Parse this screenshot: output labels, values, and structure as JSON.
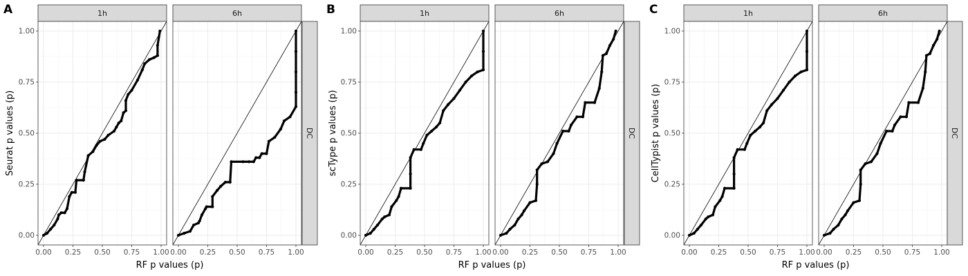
{
  "chart_data": [
    {
      "type": "scatter",
      "panel_label": "A",
      "facets": [
        "1h",
        "6h"
      ],
      "row_strip": "DC",
      "xlabel": "RF p values (p)",
      "ylabel": "Seurat p values (p)",
      "xlim": [
        0,
        1
      ],
      "ylim": [
        0,
        1
      ],
      "xticks": [
        "0.00",
        "0.25",
        "0.50",
        "0.75",
        "1.00"
      ],
      "yticks": [
        "0.00",
        "0.25",
        "0.50",
        "0.75",
        "1.00"
      ],
      "grid": true,
      "reference_line": "y = x",
      "series": [
        {
          "facet": "1h",
          "points": [
            [
              0,
              0
            ],
            [
              0.03,
              0.01
            ],
            [
              0.06,
              0.03
            ],
            [
              0.09,
              0.05
            ],
            [
              0.12,
              0.08
            ],
            [
              0.13,
              0.1
            ],
            [
              0.15,
              0.11
            ],
            [
              0.18,
              0.11
            ],
            [
              0.2,
              0.13
            ],
            [
              0.22,
              0.19
            ],
            [
              0.24,
              0.21
            ],
            [
              0.27,
              0.21
            ],
            [
              0.28,
              0.27
            ],
            [
              0.34,
              0.27
            ],
            [
              0.35,
              0.31
            ],
            [
              0.38,
              0.39
            ],
            [
              0.42,
              0.41
            ],
            [
              0.45,
              0.44
            ],
            [
              0.48,
              0.46
            ],
            [
              0.52,
              0.47
            ],
            [
              0.55,
              0.49
            ],
            [
              0.6,
              0.51
            ],
            [
              0.62,
              0.53
            ],
            [
              0.64,
              0.55
            ],
            [
              0.66,
              0.56
            ],
            [
              0.68,
              0.6
            ],
            [
              0.7,
              0.61
            ],
            [
              0.7,
              0.66
            ],
            [
              0.72,
              0.69
            ],
            [
              0.75,
              0.71
            ],
            [
              0.8,
              0.76
            ],
            [
              0.84,
              0.81
            ],
            [
              0.86,
              0.84
            ],
            [
              0.9,
              0.86
            ],
            [
              0.94,
              0.87
            ],
            [
              0.97,
              0.88
            ],
            [
              0.97,
              0.93
            ],
            [
              0.99,
              1.0
            ]
          ]
        },
        {
          "facet": "6h",
          "points": [
            [
              0,
              0
            ],
            [
              0.05,
              0.01
            ],
            [
              0.1,
              0.02
            ],
            [
              0.13,
              0.05
            ],
            [
              0.17,
              0.06
            ],
            [
              0.18,
              0.07
            ],
            [
              0.2,
              0.1
            ],
            [
              0.23,
              0.13
            ],
            [
              0.24,
              0.14
            ],
            [
              0.29,
              0.14
            ],
            [
              0.29,
              0.19
            ],
            [
              0.33,
              0.22
            ],
            [
              0.36,
              0.24
            ],
            [
              0.4,
              0.26
            ],
            [
              0.44,
              0.26
            ],
            [
              0.45,
              0.36
            ],
            [
              0.55,
              0.36
            ],
            [
              0.6,
              0.36
            ],
            [
              0.64,
              0.36
            ],
            [
              0.66,
              0.38
            ],
            [
              0.69,
              0.38
            ],
            [
              0.71,
              0.4
            ],
            [
              0.75,
              0.4
            ],
            [
              0.77,
              0.46
            ],
            [
              0.82,
              0.48
            ],
            [
              0.87,
              0.52
            ],
            [
              0.9,
              0.56
            ],
            [
              0.95,
              0.58
            ],
            [
              1.0,
              0.63
            ],
            [
              1.0,
              0.7
            ],
            [
              1.0,
              0.8
            ],
            [
              1.0,
              0.9
            ],
            [
              1.0,
              1.0
            ]
          ]
        }
      ]
    },
    {
      "type": "scatter",
      "panel_label": "B",
      "facets": [
        "1h",
        "6h"
      ],
      "row_strip": "DC",
      "xlabel": "RF p values (p)",
      "ylabel": "scType p values (p)",
      "xlim": [
        0,
        1
      ],
      "ylim": [
        0,
        1
      ],
      "xticks": [
        "0.00",
        "0.25",
        "0.50",
        "0.75",
        "1.00"
      ],
      "yticks": [
        "0.00",
        "0.25",
        "0.50",
        "0.75",
        "1.00"
      ],
      "grid": true,
      "reference_line": "y = x",
      "series": [
        {
          "facet": "1h",
          "points": [
            [
              0,
              0
            ],
            [
              0.04,
              0.01
            ],
            [
              0.07,
              0.03
            ],
            [
              0.1,
              0.05
            ],
            [
              0.14,
              0.08
            ],
            [
              0.16,
              0.09
            ],
            [
              0.2,
              0.1
            ],
            [
              0.22,
              0.14
            ],
            [
              0.26,
              0.17
            ],
            [
              0.28,
              0.19
            ],
            [
              0.3,
              0.23
            ],
            [
              0.38,
              0.23
            ],
            [
              0.38,
              0.3
            ],
            [
              0.38,
              0.38
            ],
            [
              0.41,
              0.42
            ],
            [
              0.47,
              0.42
            ],
            [
              0.49,
              0.45
            ],
            [
              0.52,
              0.49
            ],
            [
              0.56,
              0.51
            ],
            [
              0.6,
              0.53
            ],
            [
              0.63,
              0.55
            ],
            [
              0.66,
              0.61
            ],
            [
              0.7,
              0.64
            ],
            [
              0.75,
              0.67
            ],
            [
              0.8,
              0.71
            ],
            [
              0.85,
              0.75
            ],
            [
              0.9,
              0.78
            ],
            [
              0.95,
              0.8
            ],
            [
              1.0,
              0.81
            ],
            [
              1.0,
              0.9
            ],
            [
              1.0,
              1.0
            ]
          ]
        },
        {
          "facet": "6h",
          "points": [
            [
              0,
              0
            ],
            [
              0.05,
              0.01
            ],
            [
              0.08,
              0.03
            ],
            [
              0.12,
              0.05
            ],
            [
              0.15,
              0.08
            ],
            [
              0.18,
              0.1
            ],
            [
              0.2,
              0.12
            ],
            [
              0.25,
              0.16
            ],
            [
              0.3,
              0.17
            ],
            [
              0.31,
              0.25
            ],
            [
              0.31,
              0.32
            ],
            [
              0.35,
              0.35
            ],
            [
              0.4,
              0.36
            ],
            [
              0.45,
              0.4
            ],
            [
              0.48,
              0.45
            ],
            [
              0.53,
              0.51
            ],
            [
              0.58,
              0.51
            ],
            [
              0.6,
              0.54
            ],
            [
              0.65,
              0.58
            ],
            [
              0.7,
              0.58
            ],
            [
              0.72,
              0.65
            ],
            [
              0.8,
              0.65
            ],
            [
              0.84,
              0.72
            ],
            [
              0.86,
              0.8
            ],
            [
              0.87,
              0.88
            ],
            [
              0.9,
              0.89
            ],
            [
              0.93,
              0.93
            ],
            [
              0.96,
              0.96
            ],
            [
              0.98,
              1.0
            ]
          ]
        }
      ]
    },
    {
      "type": "scatter",
      "panel_label": "C",
      "facets": [
        "1h",
        "6h"
      ],
      "row_strip": "DC",
      "xlabel": "RF p values (p)",
      "ylabel": "CellTypist p values (p)",
      "xlim": [
        0,
        1
      ],
      "ylim": [
        0,
        1
      ],
      "xticks": [
        "0.00",
        "0.25",
        "0.50",
        "0.75",
        "1.00"
      ],
      "yticks": [
        "0.00",
        "0.25",
        "0.50",
        "0.75",
        "1.00"
      ],
      "grid": true,
      "reference_line": "y = x",
      "series": [
        {
          "facet": "1h",
          "points": [
            [
              0,
              0
            ],
            [
              0.04,
              0.01
            ],
            [
              0.07,
              0.03
            ],
            [
              0.1,
              0.05
            ],
            [
              0.14,
              0.08
            ],
            [
              0.16,
              0.09
            ],
            [
              0.2,
              0.1
            ],
            [
              0.22,
              0.14
            ],
            [
              0.26,
              0.17
            ],
            [
              0.28,
              0.19
            ],
            [
              0.3,
              0.23
            ],
            [
              0.38,
              0.23
            ],
            [
              0.38,
              0.3
            ],
            [
              0.38,
              0.38
            ],
            [
              0.41,
              0.42
            ],
            [
              0.47,
              0.42
            ],
            [
              0.49,
              0.45
            ],
            [
              0.52,
              0.49
            ],
            [
              0.56,
              0.51
            ],
            [
              0.6,
              0.53
            ],
            [
              0.63,
              0.55
            ],
            [
              0.66,
              0.61
            ],
            [
              0.7,
              0.64
            ],
            [
              0.75,
              0.67
            ],
            [
              0.8,
              0.71
            ],
            [
              0.85,
              0.75
            ],
            [
              0.9,
              0.78
            ],
            [
              0.95,
              0.8
            ],
            [
              1.0,
              0.81
            ],
            [
              1.0,
              0.9
            ],
            [
              1.0,
              1.0
            ]
          ]
        },
        {
          "facet": "6h",
          "points": [
            [
              0,
              0
            ],
            [
              0.05,
              0.01
            ],
            [
              0.08,
              0.03
            ],
            [
              0.12,
              0.05
            ],
            [
              0.15,
              0.08
            ],
            [
              0.18,
              0.1
            ],
            [
              0.2,
              0.12
            ],
            [
              0.25,
              0.16
            ],
            [
              0.3,
              0.17
            ],
            [
              0.31,
              0.25
            ],
            [
              0.31,
              0.32
            ],
            [
              0.35,
              0.35
            ],
            [
              0.4,
              0.36
            ],
            [
              0.45,
              0.4
            ],
            [
              0.48,
              0.45
            ],
            [
              0.53,
              0.51
            ],
            [
              0.58,
              0.51
            ],
            [
              0.6,
              0.54
            ],
            [
              0.65,
              0.58
            ],
            [
              0.7,
              0.58
            ],
            [
              0.72,
              0.65
            ],
            [
              0.8,
              0.65
            ],
            [
              0.84,
              0.72
            ],
            [
              0.86,
              0.8
            ],
            [
              0.87,
              0.88
            ],
            [
              0.9,
              0.89
            ],
            [
              0.93,
              0.93
            ],
            [
              0.96,
              0.96
            ],
            [
              0.98,
              1.0
            ]
          ]
        }
      ]
    }
  ]
}
